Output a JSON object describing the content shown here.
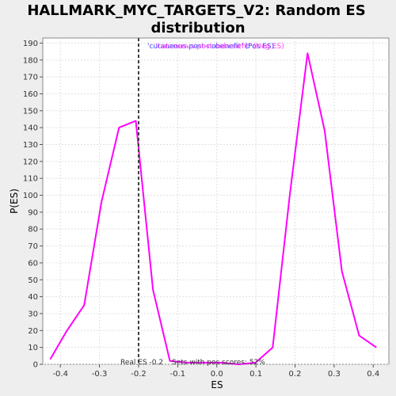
{
  "chart_data": {
    "type": "line",
    "title_lines": [
      "HALLMARK_MYC_TARGETS_V2: Random ES",
      "distribution"
    ],
    "xlabel": "ES",
    "ylabel": "P(ES)",
    "xlim": [
      -0.445,
      0.44
    ],
    "ylim": [
      0,
      193
    ],
    "xticks": [
      -0.4,
      -0.3,
      -0.2,
      -0.1,
      0.0,
      0.1,
      0.2,
      0.3,
      0.4
    ],
    "xtick_labels": [
      "-0.4",
      "-0.3",
      "-0.2",
      "-0.1",
      "0.0",
      "0.1",
      "0.2",
      "0.3",
      "0.4"
    ],
    "yticks": [
      0,
      10,
      20,
      30,
      40,
      50,
      60,
      70,
      80,
      90,
      100,
      110,
      120,
      130,
      140,
      150,
      160,
      170,
      180,
      190
    ],
    "grid": true,
    "series": [
      {
        "name": "'cutaneous-post-nobenefit' (Neg ES)",
        "color": "#ff00ff",
        "x": [
          -0.426,
          -0.383,
          -0.339,
          -0.295,
          -0.25,
          -0.207,
          -0.163,
          -0.12,
          -0.076,
          -0.032,
          0.011,
          0.055,
          0.099,
          0.143,
          0.187,
          0.232,
          0.276,
          0.32,
          0.364,
          0.408
        ],
        "y": [
          3,
          20,
          35,
          96,
          140,
          144,
          44,
          2,
          1,
          1,
          1,
          0,
          1,
          10,
          101,
          184,
          138,
          55,
          17,
          10
        ]
      }
    ],
    "legend": {
      "placement": "top-center",
      "entries": [
        "'cutaneous-post-nobenefit' (Pos ES)",
        "'cutaneous-post-nobenefit' (Neg ES)"
      ],
      "colors": [
        "#4040ff",
        "#ff40ff"
      ]
    },
    "real_es": {
      "value": -0.2,
      "line_color": "#404040",
      "line_style": "dashed"
    },
    "annotations": {
      "real_es_text": "Real ES -0.2",
      "pos_scores_text": "Sets with pos scores: 52%"
    },
    "colors": {
      "grid": "#e0e0e0",
      "plot_bg": "#ffffff",
      "page_bg": "#eeeeee"
    }
  }
}
